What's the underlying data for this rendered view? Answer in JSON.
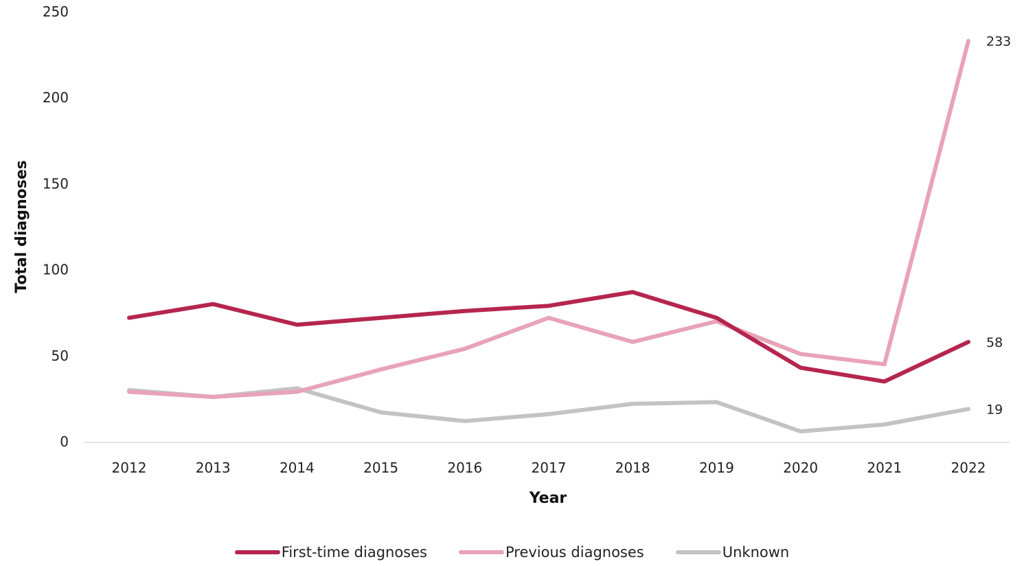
{
  "chart_data": {
    "type": "line",
    "title": "",
    "xlabel": "Year",
    "ylabel": "Total diagnoses",
    "categories": [
      "2012",
      "2013",
      "2014",
      "2015",
      "2016",
      "2017",
      "2018",
      "2019",
      "2020",
      "2021",
      "2022"
    ],
    "ylim": [
      0,
      250
    ],
    "yticks": [
      "0",
      "50",
      "100",
      "150",
      "200",
      "250"
    ],
    "grid": false,
    "legend_position": "bottom",
    "series": [
      {
        "name": "First-time diagnoses",
        "color": "#b5264f",
        "values": [
          72,
          80,
          68,
          72,
          76,
          79,
          87,
          72,
          43,
          35,
          58
        ],
        "end_label": "58"
      },
      {
        "name": "Previous diagnoses",
        "color": "#e8a3b7",
        "values": [
          29,
          26,
          29,
          42,
          54,
          72,
          58,
          70,
          51,
          45,
          233
        ],
        "end_label": "233"
      },
      {
        "name": "Unknown",
        "color": "#c3c3c3",
        "values": [
          30,
          26,
          31,
          17,
          12,
          16,
          22,
          23,
          6,
          10,
          19
        ],
        "end_label": "19"
      }
    ]
  }
}
